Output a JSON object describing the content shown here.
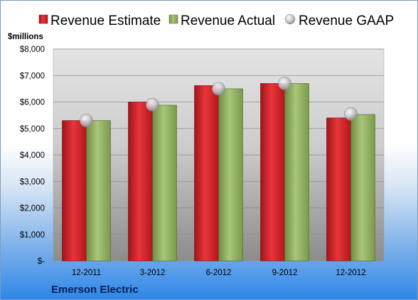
{
  "chart_data": {
    "type": "bar",
    "unit_label": "$millions",
    "company": "Emerson Electric",
    "categories": [
      "12-2011",
      "3-2012",
      "6-2012",
      "9-2012",
      "12-2012"
    ],
    "series": [
      {
        "name": "Revenue Estimate",
        "type": "bar",
        "color": "#cc1d22",
        "values": [
          5300,
          6000,
          6620,
          6700,
          5400
        ]
      },
      {
        "name": "Revenue Actual",
        "type": "bar",
        "color": "#8fae5c",
        "values": [
          5300,
          5880,
          6500,
          6700,
          5530
        ]
      },
      {
        "name": "Revenue GAAP",
        "type": "marker",
        "color": "#c8c8cc",
        "values": [
          5300,
          5900,
          6500,
          6700,
          5550
        ]
      }
    ],
    "ylim": [
      0,
      8000
    ],
    "yticks": [
      0,
      1000,
      2000,
      3000,
      4000,
      5000,
      6000,
      7000,
      8000
    ],
    "ytick_labels": [
      "$-",
      "$1,000",
      "$2,000",
      "$3,000",
      "$4,000",
      "$5,000",
      "$6,000",
      "$7,000",
      "$8,000"
    ],
    "grid": true,
    "legend_position": "top"
  }
}
